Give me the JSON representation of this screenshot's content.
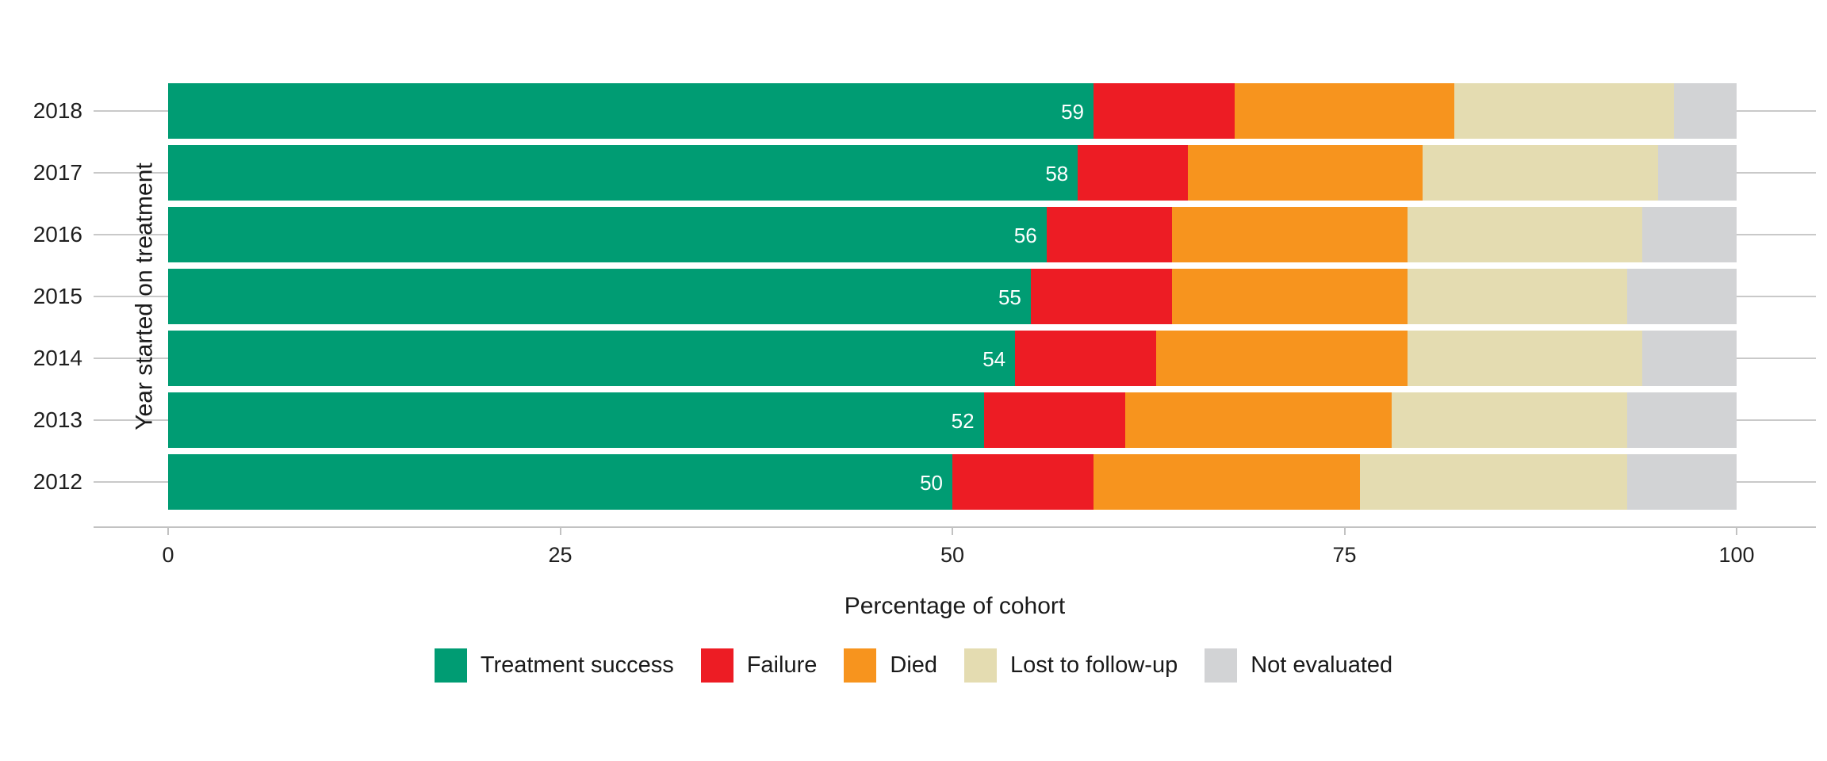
{
  "chart_data": {
    "type": "bar",
    "orientation": "horizontal",
    "stacked": true,
    "title": "",
    "xlabel": "Percentage of cohort",
    "ylabel": "Year started on treatment",
    "xlim": [
      0,
      100
    ],
    "xticks": [
      "0",
      "25",
      "50",
      "75",
      "100"
    ],
    "xtick_values": [
      0,
      25,
      50,
      75,
      100
    ],
    "grid": "horizontal-only",
    "legend_position": "bottom",
    "categories": [
      "2018",
      "2017",
      "2016",
      "2015",
      "2014",
      "2013",
      "2012"
    ],
    "series": [
      {
        "name": "Treatment success",
        "color": "#009c73",
        "values": [
          59,
          58,
          56,
          55,
          54,
          52,
          50
        ]
      },
      {
        "name": "Failure",
        "color": "#ed1c24",
        "values": [
          9,
          7,
          8,
          9,
          9,
          9,
          9
        ]
      },
      {
        "name": "Died",
        "color": "#f7941e",
        "values": [
          14,
          15,
          15,
          15,
          16,
          17,
          17
        ]
      },
      {
        "name": "Lost to follow-up",
        "color": "#e4dcb1",
        "values": [
          14,
          15,
          15,
          14,
          15,
          15,
          17
        ]
      },
      {
        "name": "Not evaluated",
        "color": "#d2d3d5",
        "values": [
          4,
          5,
          6,
          7,
          6,
          7,
          7
        ]
      }
    ],
    "bar_value_labels": [
      "59",
      "58",
      "56",
      "55",
      "54",
      "52",
      "50"
    ],
    "bar_value_label_series": "Treatment success",
    "colors": {
      "treatment_success": "#009c73",
      "failure": "#ed1c24",
      "died": "#f7941e",
      "lost_to_follow_up": "#e4dcb1",
      "not_evaluated": "#d2d3d5",
      "gridline": "#c9c9c9",
      "axis_line": "#c2c2c2",
      "text": "#1a1a1a",
      "bar_label_text": "#ffffff"
    }
  }
}
